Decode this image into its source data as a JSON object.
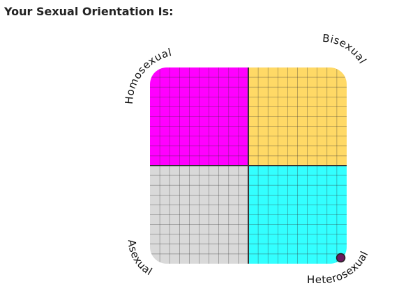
{
  "chart_data": {
    "type": "scatter",
    "title": "Your Sexual Orientation Is:",
    "annotations": [
      "Homosexual",
      "Bisexual",
      "Asexual",
      "Heterosexual"
    ],
    "quadrant_colors": [
      "#ff00ff",
      "#ffd966",
      "#d9d9d9",
      "#33ffff"
    ],
    "x": [
      9.4
    ],
    "values": [
      -9.4
    ],
    "color": "#6b1a5e",
    "xlim": [
      -10,
      10
    ],
    "ylim": [
      -10,
      10
    ],
    "grid": true
  }
}
